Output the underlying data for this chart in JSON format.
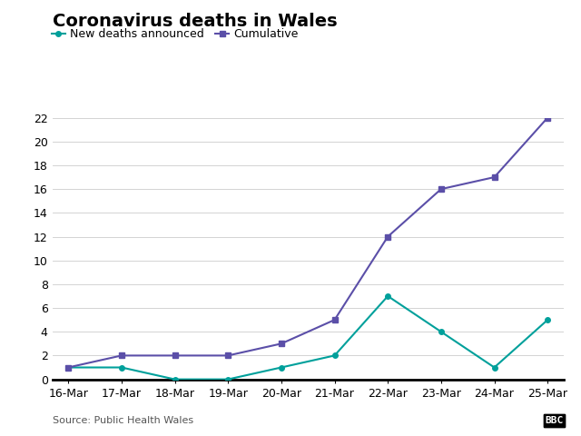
{
  "title": "Coronavirus deaths in Wales",
  "dates": [
    "16-Mar",
    "17-Mar",
    "18-Mar",
    "19-Mar",
    "20-Mar",
    "21-Mar",
    "22-Mar",
    "23-Mar",
    "24-Mar",
    "25-Mar"
  ],
  "new_deaths": [
    1,
    1,
    0,
    0,
    1,
    2,
    7,
    4,
    1,
    5
  ],
  "cumulative": [
    1,
    2,
    2,
    2,
    3,
    5,
    12,
    16,
    17,
    22
  ],
  "new_deaths_color": "#00A09B",
  "cumulative_color": "#5B4FA8",
  "new_deaths_label": "New deaths announced",
  "cumulative_label": "Cumulative",
  "ylim": [
    0,
    22
  ],
  "yticks": [
    0,
    2,
    4,
    6,
    8,
    10,
    12,
    14,
    16,
    18,
    20,
    22
  ],
  "source_text": "Source: Public Health Wales",
  "bbc_text": "BBC",
  "title_fontsize": 14,
  "axis_fontsize": 9,
  "legend_fontsize": 9,
  "source_fontsize": 8,
  "background_color": "#FFFFFF"
}
